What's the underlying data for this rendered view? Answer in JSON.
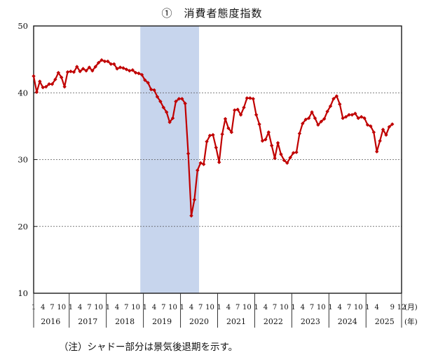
{
  "title": "①　消費者態度指数",
  "note": "（注）シャドー部分は景気後退期を示す。",
  "chart_data": {
    "type": "line",
    "title": "① 消費者態度指数",
    "xlabel": "",
    "ylabel": "",
    "ylim": [
      10,
      50
    ],
    "yticks": [
      50,
      40,
      30,
      20,
      10
    ],
    "gridlines": [
      40,
      30,
      20
    ],
    "grid": true,
    "legend_position": "none",
    "unit_month_label": "(月)",
    "unit_year_label": "(年)",
    "line_color": "#c00000",
    "recession_shading_color": "#c7d5ed",
    "recession_band": {
      "start": "2018-12",
      "end": "2020-06",
      "label": "景気後退期"
    },
    "x_start": "2016-01",
    "x_end": "2025-12",
    "years": [
      {
        "year": "2016",
        "month_labels": [
          1,
          4,
          7,
          10
        ]
      },
      {
        "year": "2017",
        "month_labels": [
          1,
          4,
          7,
          10
        ]
      },
      {
        "year": "2018",
        "month_labels": [
          1,
          4,
          7,
          10
        ]
      },
      {
        "year": "2019",
        "month_labels": [
          1,
          4,
          7,
          10
        ]
      },
      {
        "year": "2020",
        "month_labels": [
          1,
          4,
          7,
          10
        ]
      },
      {
        "year": "2021",
        "month_labels": [
          1,
          4,
          7,
          10
        ]
      },
      {
        "year": "2022",
        "month_labels": [
          1,
          4,
          7,
          10
        ]
      },
      {
        "year": "2023",
        "month_labels": [
          1,
          4,
          7,
          10
        ]
      },
      {
        "year": "2024",
        "month_labels": [
          1,
          4,
          7,
          10
        ]
      },
      {
        "year": "2025",
        "month_labels": [
          1,
          4,
          9,
          12
        ]
      }
    ],
    "series": [
      {
        "name": "消費者態度指数",
        "values_by_year": {
          "2016": [
            42.5,
            40.1,
            41.7,
            40.8,
            40.9,
            41.3,
            41.3,
            42.0,
            43.0,
            42.3,
            40.9,
            43.1
          ],
          "2017": [
            43.2,
            43.1,
            43.9,
            43.2,
            43.6,
            43.3,
            43.8,
            43.3,
            43.9,
            44.5,
            44.9,
            44.7
          ],
          "2018": [
            44.7,
            44.3,
            44.3,
            43.6,
            43.8,
            43.7,
            43.5,
            43.3,
            43.4,
            43.0,
            42.9,
            42.7
          ],
          "2019": [
            41.9,
            41.5,
            40.5,
            40.4,
            39.4,
            38.7,
            37.8,
            37.1,
            35.6,
            36.2,
            38.7,
            39.1
          ],
          "2020": [
            39.1,
            38.4,
            30.9,
            21.6,
            24.0,
            28.4,
            29.5,
            29.3,
            32.7,
            33.6,
            33.7,
            31.8
          ],
          "2021": [
            29.6,
            33.8,
            36.1,
            34.7,
            34.1,
            37.4,
            37.5,
            36.7,
            37.8,
            39.2,
            39.2,
            39.1
          ],
          "2022": [
            36.7,
            35.3,
            32.8,
            33.0,
            34.1,
            32.1,
            30.2,
            32.5,
            30.8,
            29.9,
            29.5,
            30.3
          ],
          "2023": [
            31.0,
            31.1,
            33.9,
            35.4,
            36.0,
            36.2,
            37.1,
            36.2,
            35.2,
            35.7,
            36.1,
            37.2
          ],
          "2024": [
            38.0,
            39.1,
            39.5,
            38.3,
            36.2,
            36.4,
            36.7,
            36.7,
            36.9,
            36.2,
            36.4,
            36.2
          ],
          "2025": [
            35.2,
            35.0,
            34.1,
            31.2,
            32.8,
            34.5,
            33.7,
            34.9,
            35.3
          ]
        }
      }
    ]
  }
}
